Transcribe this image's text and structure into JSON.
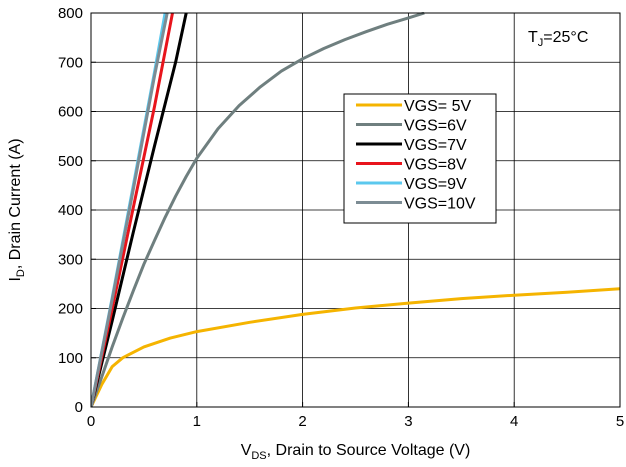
{
  "chart_data": {
    "type": "line",
    "xlabel_main": "V",
    "xlabel_sub": "DS",
    "xlabel_rest": ", Drain to Source Voltage (V)",
    "ylabel_main": "I",
    "ylabel_sub": "D",
    "ylabel_rest": ", Drain Current (A)",
    "xlim": [
      0,
      5
    ],
    "ylim": [
      0,
      800
    ],
    "x_ticks": [
      "0",
      "1",
      "2",
      "3",
      "4",
      "5"
    ],
    "y_ticks": [
      "0",
      "100",
      "200",
      "300",
      "400",
      "500",
      "600",
      "700",
      "800"
    ],
    "grid": true,
    "legend_position": "center-right",
    "annotation": {
      "main": "T",
      "sub": "J",
      "rest": "=25°C"
    },
    "series": [
      {
        "name": "VGS= 5V",
        "color": "#f5b400",
        "points": [
          [
            0,
            0
          ],
          [
            0.1,
            45
          ],
          [
            0.2,
            82
          ],
          [
            0.3,
            100
          ],
          [
            0.5,
            122
          ],
          [
            0.75,
            140
          ],
          [
            1,
            153
          ],
          [
            1.5,
            172
          ],
          [
            2,
            188
          ],
          [
            2.5,
            201
          ],
          [
            3,
            211
          ],
          [
            3.5,
            220
          ],
          [
            4,
            227
          ],
          [
            4.5,
            233
          ],
          [
            5,
            240
          ]
        ]
      },
      {
        "name": "VGS=6V",
        "color": "#6f7f7f",
        "points": [
          [
            0,
            0
          ],
          [
            0.1,
            60
          ],
          [
            0.2,
            122
          ],
          [
            0.3,
            180
          ],
          [
            0.4,
            236
          ],
          [
            0.5,
            290
          ],
          [
            0.6,
            338
          ],
          [
            0.7,
            385
          ],
          [
            0.8,
            428
          ],
          [
            0.9,
            468
          ],
          [
            1,
            505
          ],
          [
            1.2,
            565
          ],
          [
            1.4,
            612
          ],
          [
            1.6,
            650
          ],
          [
            1.8,
            682
          ],
          [
            2,
            707
          ],
          [
            2.2,
            728
          ],
          [
            2.4,
            746
          ],
          [
            2.6,
            762
          ],
          [
            2.8,
            777
          ],
          [
            3,
            790
          ],
          [
            3.15,
            800
          ]
        ]
      },
      {
        "name": "VGS=7V",
        "color": "#000000",
        "points": [
          [
            0,
            0
          ],
          [
            0.2,
            175
          ],
          [
            0.4,
            355
          ],
          [
            0.6,
            530
          ],
          [
            0.8,
            700
          ],
          [
            0.9,
            800
          ]
        ]
      },
      {
        "name": "VGS=8V",
        "color": "#e8141c",
        "points": [
          [
            0,
            0
          ],
          [
            0.2,
            200
          ],
          [
            0.4,
            405
          ],
          [
            0.6,
            610
          ],
          [
            0.77,
            800
          ]
        ]
      },
      {
        "name": "VGS=9V",
        "color": "#5bc8ee",
        "points": [
          [
            0,
            0
          ],
          [
            0.2,
            222
          ],
          [
            0.4,
            450
          ],
          [
            0.6,
            680
          ],
          [
            0.7,
            800
          ]
        ]
      },
      {
        "name": "VGS=10V",
        "color": "#7c8c94",
        "points": [
          [
            0,
            0
          ],
          [
            0.2,
            218
          ],
          [
            0.4,
            442
          ],
          [
            0.6,
            672
          ],
          [
            0.72,
            800
          ]
        ]
      }
    ]
  }
}
